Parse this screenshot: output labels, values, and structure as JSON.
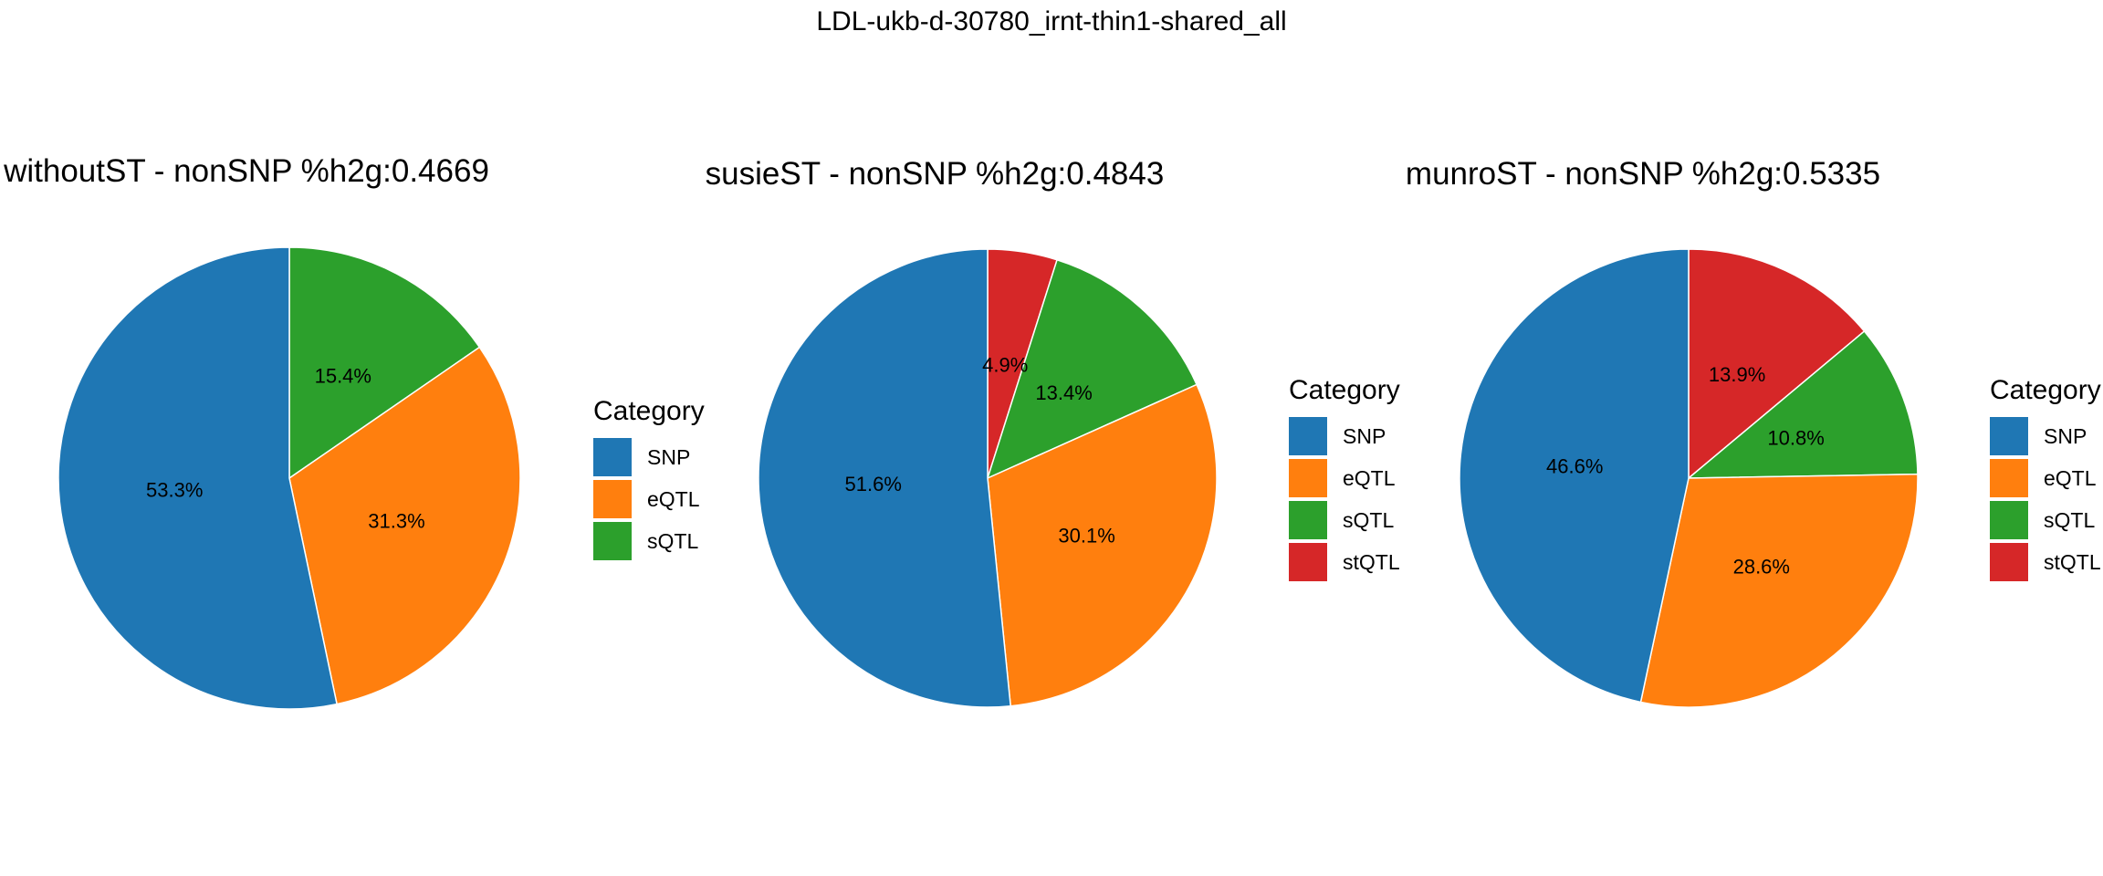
{
  "figure": {
    "title": "LDL-ukb-d-30780_irnt-thin1-shared_all"
  },
  "chart_data": [
    {
      "type": "pie",
      "title": "withoutST - nonSNP %h2g:0.4669",
      "legend_title": "Category",
      "legend_position": "right",
      "direction": "clockwise-from-top",
      "slices": [
        {
          "category": "sQTL",
          "value": 15.4,
          "label": "15.4%",
          "color": "#2ca02c"
        },
        {
          "category": "eQTL",
          "value": 31.3,
          "label": "31.3%",
          "color": "#ff7f0e"
        },
        {
          "category": "SNP",
          "value": 53.3,
          "label": "53.3%",
          "color": "#1f77b4"
        }
      ],
      "legend": [
        {
          "label": "SNP",
          "color": "#1f77b4"
        },
        {
          "label": "eQTL",
          "color": "#ff7f0e"
        },
        {
          "label": "sQTL",
          "color": "#2ca02c"
        }
      ]
    },
    {
      "type": "pie",
      "title": "susieST - nonSNP %h2g:0.4843",
      "legend_title": "Category",
      "legend_position": "right",
      "direction": "clockwise-from-top",
      "slices": [
        {
          "category": "stQTL",
          "value": 4.9,
          "label": "4.9%",
          "color": "#d62728"
        },
        {
          "category": "sQTL",
          "value": 13.4,
          "label": "13.4%",
          "color": "#2ca02c"
        },
        {
          "category": "eQTL",
          "value": 30.1,
          "label": "30.1%",
          "color": "#ff7f0e"
        },
        {
          "category": "SNP",
          "value": 51.6,
          "label": "51.6%",
          "color": "#1f77b4"
        }
      ],
      "legend": [
        {
          "label": "SNP",
          "color": "#1f77b4"
        },
        {
          "label": "eQTL",
          "color": "#ff7f0e"
        },
        {
          "label": "sQTL",
          "color": "#2ca02c"
        },
        {
          "label": "stQTL",
          "color": "#d62728"
        }
      ]
    },
    {
      "type": "pie",
      "title": "munroST - nonSNP %h2g:0.5335",
      "legend_title": "Category",
      "legend_position": "right",
      "direction": "clockwise-from-top",
      "slices": [
        {
          "category": "stQTL",
          "value": 13.9,
          "label": "13.9%",
          "color": "#d62728"
        },
        {
          "category": "sQTL",
          "value": 10.8,
          "label": "10.8%",
          "color": "#2ca02c"
        },
        {
          "category": "eQTL",
          "value": 28.6,
          "label": "28.6%",
          "color": "#ff7f0e"
        },
        {
          "category": "SNP",
          "value": 46.6,
          "label": "46.6%",
          "color": "#1f77b4"
        }
      ],
      "legend": [
        {
          "label": "SNP",
          "color": "#1f77b4"
        },
        {
          "label": "eQTL",
          "color": "#ff7f0e"
        },
        {
          "label": "sQTL",
          "color": "#2ca02c"
        },
        {
          "label": "stQTL",
          "color": "#d62728"
        }
      ]
    }
  ]
}
